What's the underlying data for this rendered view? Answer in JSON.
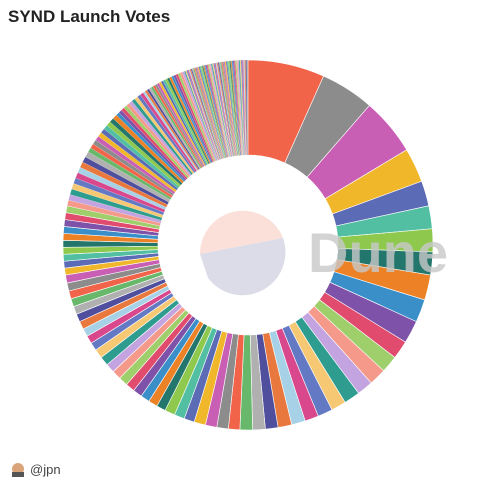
{
  "chart_data": {
    "type": "pie",
    "title": "SYND Launch Votes",
    "watermark": "Dune",
    "author": "@jpn",
    "palette": [
      "#f26449",
      "#8c8c8c",
      "#c95fb5",
      "#f0b72b",
      "#5b6bb5",
      "#52bfa3",
      "#8ec94e",
      "#23766b",
      "#ec8125",
      "#3a8fc9",
      "#7e52a8",
      "#e04b6e",
      "#9fcf6a",
      "#f59a8b",
      "#c3a3e0",
      "#2e9c8f",
      "#f7c873",
      "#6479c4",
      "#d9488c",
      "#a6d1e6",
      "#e8783d",
      "#4f4f9e",
      "#b0b0b0",
      "#67b86a"
    ],
    "values": [
      6.7,
      4.7,
      5.0,
      3.0,
      2.2,
      2.0,
      2.0,
      2.0,
      2.2,
      2.0,
      2.0,
      1.6,
      1.5,
      1.5,
      1.4,
      1.4,
      1.3,
      1.3,
      1.2,
      1.2,
      1.2,
      1.1,
      1.1,
      1.1,
      1.0,
      1.0,
      1.0,
      1.0,
      0.9,
      0.9,
      0.9,
      0.8,
      0.8,
      0.8,
      0.8,
      0.8,
      0.8,
      0.8,
      0.8,
      0.8,
      0.8,
      0.7,
      0.7,
      0.7,
      0.7,
      0.7,
      0.7,
      0.7,
      0.7,
      0.7,
      0.7,
      0.6,
      0.6,
      0.6,
      0.6,
      0.6,
      0.6,
      0.6,
      0.6,
      0.6,
      0.6,
      0.5,
      0.5,
      0.5,
      0.5,
      0.5,
      0.5,
      0.5,
      0.5,
      0.5,
      0.5,
      0.4,
      0.4,
      0.4,
      0.4,
      0.4,
      0.4,
      0.4,
      0.4,
      0.4,
      0.4,
      0.3,
      0.3,
      0.3,
      0.3,
      0.3,
      0.3,
      0.3,
      0.3,
      0.3,
      0.3,
      0.2,
      0.2,
      0.2,
      0.2,
      0.2,
      0.2,
      0.2,
      0.2,
      0.2,
      0.2,
      0.2,
      0.2,
      0.2,
      0.2,
      0.2,
      0.2,
      0.2,
      0.2,
      0.2,
      0.2,
      0.1,
      0.1,
      0.1,
      0.1,
      0.1,
      0.1,
      0.1,
      0.1,
      0.1,
      0.1,
      0.1,
      0.1,
      0.1,
      0.1,
      0.1,
      0.1,
      0.1,
      0.1,
      0.1,
      0.1,
      0.1,
      0.1,
      0.1,
      0.1,
      0.1,
      0.1,
      0.1,
      0.1,
      0.1,
      0.1,
      0.1,
      0.1,
      0.1,
      0.1,
      0.1,
      0.1,
      0.1,
      0.1,
      0.1,
      0.1,
      0.1,
      0.1,
      0.1,
      0.1,
      0.1,
      0.1,
      0.1,
      0.1,
      0.1,
      0.1,
      0.1,
      0.1,
      0.1,
      0.1,
      0.1,
      0.1
    ]
  }
}
